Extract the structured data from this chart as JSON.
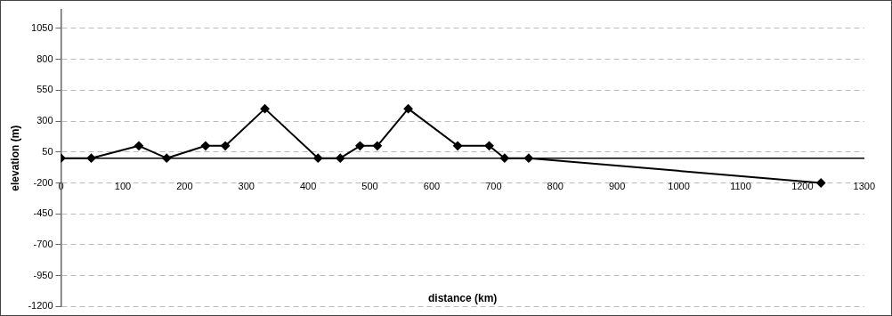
{
  "chart_data": {
    "type": "line",
    "xlabel": "distance (km)",
    "ylabel": "elevation (m)",
    "x": [
      0,
      49,
      126,
      171,
      234,
      266,
      330,
      416,
      452,
      484,
      512,
      562,
      642,
      693,
      718,
      757,
      1230
    ],
    "values": [
      0,
      0,
      100,
      0,
      100,
      100,
      400,
      0,
      0,
      100,
      100,
      400,
      100,
      100,
      0,
      0,
      -200
    ],
    "color": "#000000",
    "marker": "diamond",
    "line_style": "solid",
    "grid": "y",
    "legend": false,
    "xlim": [
      0,
      1300
    ],
    "xticks": [
      0,
      100,
      200,
      300,
      400,
      500,
      600,
      700,
      800,
      900,
      1000,
      1100,
      1200,
      1300
    ],
    "ylim": [
      -1200,
      1200
    ],
    "yticks": [
      -1200,
      -950,
      -700,
      -450,
      -200,
      50,
      300,
      550,
      800,
      1050
    ]
  }
}
